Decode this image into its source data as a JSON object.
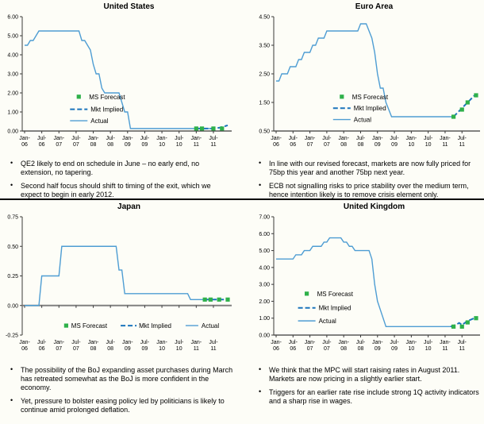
{
  "colors": {
    "actual_line": "#4E9DD3",
    "mkt_implied_line": "#1B74BC",
    "ms_forecast_marker": "#2FB14A",
    "axis": "#3A3A3A",
    "zero_axis": "#808080",
    "text": "#000000",
    "background": "#FDFDF7",
    "divider": "#000000"
  },
  "x_axis": {
    "tick_labels": [
      "Jan-06",
      "Jul-06",
      "Jan-07",
      "Jul-07",
      "Jan-08",
      "Jul-08",
      "Jan-09",
      "Jul-09",
      "Jan-10",
      "Jul-10",
      "Jan-11",
      "Jul-11"
    ],
    "tick_month_index": [
      0,
      6,
      12,
      18,
      24,
      30,
      36,
      42,
      48,
      54,
      60,
      66
    ]
  },
  "chart_data": [
    {
      "type": "line",
      "title": "United States",
      "ylim": [
        0,
        6
      ],
      "yticks": [
        0,
        1,
        2,
        3,
        4,
        5,
        6
      ],
      "ytick_labels": [
        "0.00",
        "1.00",
        "2.00",
        "3.00",
        "4.00",
        "5.00",
        "6.00"
      ],
      "legend": [
        "MS Forecast",
        "Mkt Implied",
        "Actual"
      ],
      "legend_position": "middle-left",
      "series": [
        {
          "name": "Actual",
          "style": "solid",
          "points": [
            [
              0,
              4.5
            ],
            [
              1,
              4.5
            ],
            [
              2,
              4.75
            ],
            [
              3,
              4.75
            ],
            [
              4,
              5.0
            ],
            [
              5,
              5.25
            ],
            [
              19,
              5.25
            ],
            [
              20,
              4.75
            ],
            [
              21,
              4.75
            ],
            [
              22,
              4.5
            ],
            [
              23,
              4.25
            ],
            [
              24,
              3.5
            ],
            [
              25,
              3.0
            ],
            [
              26,
              3.0
            ],
            [
              27,
              2.25
            ],
            [
              28,
              2.0
            ],
            [
              33,
              2.0
            ],
            [
              34,
              1.5
            ],
            [
              35,
              1.0
            ],
            [
              36,
              1.0
            ],
            [
              37,
              0.13
            ],
            [
              66,
              0.13
            ]
          ]
        },
        {
          "name": "Mkt Implied",
          "style": "dashed",
          "points": [
            [
              60,
              0.13
            ],
            [
              66,
              0.13
            ],
            [
              68,
              0.17
            ],
            [
              70,
              0.25
            ],
            [
              71,
              0.3
            ]
          ]
        },
        {
          "name": "MS Forecast",
          "style": "squares",
          "points": [
            [
              60,
              0.13
            ],
            [
              62,
              0.13
            ],
            [
              66,
              0.13
            ],
            [
              69,
              0.13
            ]
          ]
        }
      ]
    },
    {
      "type": "line",
      "title": "Euro Area",
      "ylim": [
        0.5,
        4.5
      ],
      "yticks": [
        0.5,
        1.5,
        2.5,
        3.5,
        4.5
      ],
      "ytick_labels": [
        "0.50",
        "1.50",
        "2.50",
        "3.50",
        "4.50"
      ],
      "legend": [
        "MS Forecast",
        "Mkt Implied",
        "Actual"
      ],
      "legend_position": "middle-left",
      "series": [
        {
          "name": "Actual",
          "style": "solid",
          "points": [
            [
              0,
              2.25
            ],
            [
              1,
              2.25
            ],
            [
              2,
              2.5
            ],
            [
              4,
              2.5
            ],
            [
              5,
              2.75
            ],
            [
              7,
              2.75
            ],
            [
              8,
              3.0
            ],
            [
              9,
              3.0
            ],
            [
              10,
              3.25
            ],
            [
              12,
              3.25
            ],
            [
              13,
              3.5
            ],
            [
              14,
              3.5
            ],
            [
              15,
              3.75
            ],
            [
              17,
              3.75
            ],
            [
              18,
              4.0
            ],
            [
              29,
              4.0
            ],
            [
              30,
              4.25
            ],
            [
              32,
              4.25
            ],
            [
              33,
              4.0
            ],
            [
              34,
              3.75
            ],
            [
              35,
              3.25
            ],
            [
              36,
              2.5
            ],
            [
              37,
              2.0
            ],
            [
              38,
              2.0
            ],
            [
              39,
              1.5
            ],
            [
              40,
              1.25
            ],
            [
              41,
              1.0
            ],
            [
              63,
              1.0
            ]
          ]
        },
        {
          "name": "Mkt Implied",
          "style": "dashed",
          "points": [
            [
              63,
              1.0
            ],
            [
              65,
              1.2
            ],
            [
              67,
              1.4
            ],
            [
              69,
              1.6
            ],
            [
              71,
              1.8
            ]
          ]
        },
        {
          "name": "MS Forecast",
          "style": "squares",
          "points": [
            [
              63,
              1.0
            ],
            [
              66,
              1.25
            ],
            [
              68,
              1.5
            ],
            [
              71,
              1.75
            ]
          ]
        }
      ]
    },
    {
      "type": "line",
      "title": "Japan",
      "ylim": [
        -0.25,
        0.75
      ],
      "yticks": [
        -0.25,
        0,
        0.25,
        0.5,
        0.75
      ],
      "ytick_labels": [
        "-0.25",
        "0.00",
        "0.25",
        "0.50",
        "0.75"
      ],
      "legend": [
        "MS Forecast",
        "Mkt Implied",
        "Actual"
      ],
      "legend_position": "bottom-horizontal",
      "series": [
        {
          "name": "Actual",
          "style": "solid",
          "points": [
            [
              0,
              0
            ],
            [
              5,
              0
            ],
            [
              6,
              0.25
            ],
            [
              12,
              0.25
            ],
            [
              13,
              0.5
            ],
            [
              32,
              0.5
            ],
            [
              33,
              0.3
            ],
            [
              34,
              0.3
            ],
            [
              35,
              0.1
            ],
            [
              57,
              0.1
            ],
            [
              58,
              0.05
            ],
            [
              63,
              0.05
            ]
          ]
        },
        {
          "name": "Mkt Implied",
          "style": "dashed",
          "points": [
            [
              63,
              0.05
            ],
            [
              71,
              0.05
            ]
          ]
        },
        {
          "name": "MS Forecast",
          "style": "squares",
          "points": [
            [
              63,
              0.05
            ],
            [
              65,
              0.05
            ],
            [
              68,
              0.05
            ],
            [
              71,
              0.05
            ]
          ]
        }
      ]
    },
    {
      "type": "line",
      "title": "United Kingdom",
      "ylim": [
        0,
        7
      ],
      "yticks": [
        0,
        1,
        2,
        3,
        4,
        5,
        6,
        7
      ],
      "ytick_labels": [
        "0.00",
        "1.00",
        "2.00",
        "3.00",
        "4.00",
        "5.00",
        "6.00",
        "7.00"
      ],
      "legend": [
        "MS Forecast",
        "Mkt Implied",
        "Actual"
      ],
      "legend_position": "middle-left",
      "series": [
        {
          "name": "Actual",
          "style": "solid",
          "points": [
            [
              0,
              4.5
            ],
            [
              6,
              4.5
            ],
            [
              7,
              4.75
            ],
            [
              9,
              4.75
            ],
            [
              10,
              5.0
            ],
            [
              12,
              5.0
            ],
            [
              13,
              5.25
            ],
            [
              16,
              5.25
            ],
            [
              17,
              5.5
            ],
            [
              18,
              5.5
            ],
            [
              19,
              5.75
            ],
            [
              23,
              5.75
            ],
            [
              24,
              5.5
            ],
            [
              25,
              5.5
            ],
            [
              26,
              5.25
            ],
            [
              27,
              5.25
            ],
            [
              28,
              5.0
            ],
            [
              33,
              5.0
            ],
            [
              34,
              4.5
            ],
            [
              35,
              3.0
            ],
            [
              36,
              2.0
            ],
            [
              37,
              1.5
            ],
            [
              38,
              1.0
            ],
            [
              39,
              0.5
            ],
            [
              63,
              0.5
            ]
          ]
        },
        {
          "name": "Mkt Implied",
          "style": "dashed",
          "points": [
            [
              62,
              0.5
            ],
            [
              64,
              0.62
            ],
            [
              65,
              0.72
            ],
            [
              66,
              0.6
            ],
            [
              67,
              0.72
            ],
            [
              68,
              0.85
            ],
            [
              69,
              0.9
            ],
            [
              71,
              1.05
            ]
          ]
        },
        {
          "name": "MS Forecast",
          "style": "squares",
          "points": [
            [
              63,
              0.5
            ],
            [
              66,
              0.5
            ],
            [
              68,
              0.75
            ],
            [
              71,
              1.0
            ]
          ]
        }
      ]
    }
  ],
  "panels": [
    {
      "bullets": [
        "QE2 likely to end on schedule in June – no early end, no extension, no tapering.",
        "Second half focus should shift to timing of the exit, which we expect to begin in early 2012."
      ]
    },
    {
      "bullets": [
        "In line with our revised forecast, markets are now fully priced for 75bp this year and another 75bp next year.",
        "ECB not signalling risks to price stability over the medium term, hence intention likely is to remove crisis element only."
      ]
    },
    {
      "bullets": [
        "The possibility of the BoJ expanding asset purchases during March has retreated somewhat as the BoJ is more confident in the economy.",
        "Yet, pressure to bolster easing policy led by politicians is likely to continue amid prolonged deflation."
      ]
    },
    {
      "bullets": [
        "We think that the MPC will start raising rates in August 2011. Markets are now pricing in a slightly earlier start.",
        "Triggers for an earlier rate rise include strong 1Q activity indicators and a sharp rise in wages."
      ]
    }
  ]
}
